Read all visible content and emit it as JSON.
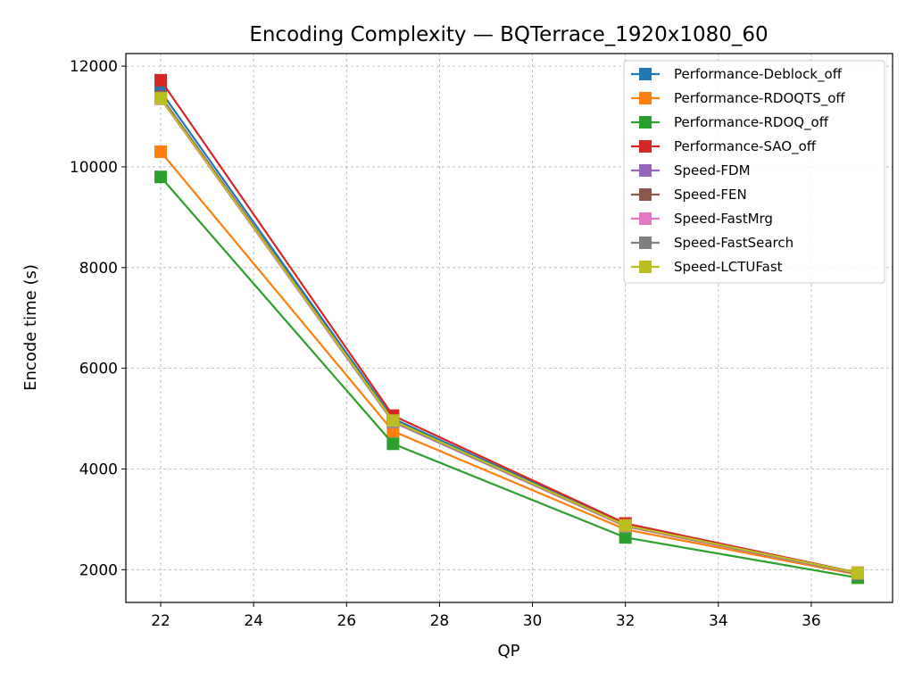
{
  "chart_data": {
    "type": "line",
    "title": "Encoding Complexity — BQTerrace_1920x1080_60",
    "xlabel": "QP",
    "ylabel": "Encode time (s)",
    "x": [
      22,
      27,
      32,
      37
    ],
    "xlim": [
      21.25,
      37.75
    ],
    "ylim": [
      1350,
      12250
    ],
    "xticks": [
      22,
      24,
      26,
      28,
      30,
      32,
      34,
      36
    ],
    "yticks": [
      2000,
      4000,
      6000,
      8000,
      10000,
      12000
    ],
    "grid": true,
    "legend_position": "top-right",
    "marker": "square",
    "series": [
      {
        "name": "Performance-Deblock_off",
        "color": "#1f77b4",
        "values": [
          11500,
          5000,
          2900,
          1930
        ]
      },
      {
        "name": "Performance-RDOQTS_off",
        "color": "#ff7f0e",
        "values": [
          10300,
          4750,
          2800,
          1900
        ]
      },
      {
        "name": "Performance-RDOQ_off",
        "color": "#2ca02c",
        "values": [
          9800,
          4500,
          2640,
          1840
        ]
      },
      {
        "name": "Performance-SAO_off",
        "color": "#d62728",
        "values": [
          11720,
          5060,
          2920,
          1940
        ]
      },
      {
        "name": "Speed-FDM",
        "color": "#9467bd",
        "values": [
          11380,
          4950,
          2870,
          1920
        ]
      },
      {
        "name": "Speed-FEN",
        "color": "#8c564b",
        "values": [
          11400,
          4960,
          2880,
          1925
        ]
      },
      {
        "name": "Speed-FastMrg",
        "color": "#e377c2",
        "values": [
          11350,
          4930,
          2860,
          1915
        ]
      },
      {
        "name": "Speed-FastSearch",
        "color": "#7f7f7f",
        "values": [
          11370,
          4940,
          2870,
          1920
        ]
      },
      {
        "name": "Speed-LCTUFast",
        "color": "#bcbd22",
        "values": [
          11360,
          4960,
          2880,
          1935
        ]
      }
    ]
  }
}
